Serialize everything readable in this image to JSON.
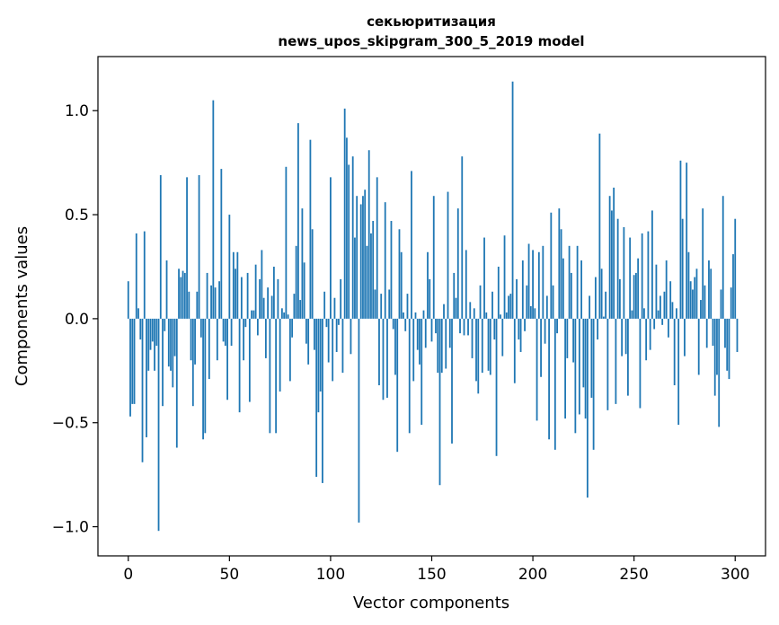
{
  "chart_data": {
    "type": "bar",
    "title_lines": [
      "секьюритизация",
      "news_upos_skipgram_300_5_2019 model"
    ],
    "xlabel": "Vector components",
    "ylabel": "Components values",
    "xlim": [
      -15,
      315
    ],
    "ylim": [
      -1.14,
      1.26
    ],
    "xticks": [
      0,
      50,
      100,
      150,
      200,
      250,
      300
    ],
    "xtick_labels": [
      "0",
      "50",
      "100",
      "150",
      "200",
      "250",
      "300"
    ],
    "yticks": [
      -1.0,
      -0.5,
      0.0,
      0.5,
      1.0
    ],
    "ytick_labels": [
      "−1.0",
      "−0.5",
      "0.0",
      "0.5",
      "1.0"
    ],
    "bar_color": "#1f77b4",
    "grid": false,
    "legend": "none",
    "values": [
      0.18,
      -0.47,
      -0.41,
      -0.41,
      0.41,
      0.05,
      -0.1,
      -0.69,
      0.42,
      -0.57,
      -0.25,
      -0.15,
      -0.11,
      -0.25,
      -0.13,
      -1.02,
      0.69,
      -0.42,
      -0.06,
      0.28,
      -0.23,
      -0.25,
      -0.33,
      -0.18,
      -0.62,
      0.24,
      0.2,
      0.23,
      0.22,
      0.68,
      0.13,
      -0.2,
      -0.42,
      -0.22,
      0.13,
      0.69,
      -0.09,
      -0.58,
      -0.55,
      0.22,
      -0.29,
      0.16,
      1.05,
      0.15,
      -0.2,
      0.18,
      0.72,
      -0.11,
      -0.13,
      -0.39,
      0.5,
      -0.13,
      0.32,
      0.24,
      0.32,
      -0.45,
      0.2,
      -0.2,
      -0.04,
      0.22,
      -0.4,
      0.04,
      0.04,
      0.26,
      -0.08,
      0.19,
      0.33,
      0.1,
      -0.19,
      0.15,
      -0.55,
      0.11,
      0.25,
      -0.55,
      0.19,
      -0.35,
      0.05,
      0.03,
      0.73,
      0.02,
      -0.3,
      -0.09,
      0.12,
      0.35,
      0.94,
      0.09,
      0.53,
      0.27,
      -0.12,
      -0.22,
      0.86,
      0.43,
      -0.15,
      -0.76,
      -0.45,
      -0.35,
      -0.79,
      0.13,
      -0.04,
      -0.21,
      0.68,
      -0.3,
      0.1,
      -0.16,
      -0.03,
      0.19,
      -0.26,
      1.01,
      0.87,
      0.74,
      -0.17,
      0.78,
      0.39,
      0.59,
      -0.98,
      0.55,
      0.59,
      0.62,
      0.35,
      0.81,
      0.41,
      0.47,
      0.14,
      0.68,
      -0.32,
      0.12,
      -0.39,
      0.56,
      -0.38,
      0.14,
      0.47,
      -0.05,
      -0.27,
      -0.64,
      0.43,
      0.32,
      0.03,
      -0.06,
      0.12,
      -0.55,
      0.71,
      -0.3,
      0.03,
      -0.15,
      -0.22,
      -0.51,
      0.04,
      -0.14,
      0.32,
      0.19,
      -0.11,
      0.59,
      -0.07,
      -0.26,
      -0.8,
      -0.26,
      0.07,
      -0.24,
      0.61,
      -0.14,
      -0.6,
      0.22,
      0.1,
      0.53,
      -0.07,
      0.78,
      -0.08,
      0.33,
      -0.08,
      0.08,
      -0.19,
      0.05,
      -0.3,
      -0.36,
      0.16,
      -0.26,
      0.39,
      0.03,
      -0.25,
      -0.27,
      0.13,
      -0.1,
      -0.66,
      0.25,
      0.02,
      -0.18,
      0.4,
      0.03,
      0.11,
      0.12,
      1.14,
      -0.31,
      0.19,
      -0.1,
      -0.16,
      0.28,
      -0.06,
      0.16,
      0.36,
      0.06,
      0.33,
      0.05,
      -0.49,
      0.32,
      -0.28,
      0.35,
      -0.12,
      0.11,
      -0.58,
      0.51,
      0.16,
      -0.63,
      -0.07,
      0.53,
      0.43,
      0.29,
      -0.48,
      -0.19,
      0.35,
      0.22,
      -0.21,
      -0.55,
      0.35,
      -0.46,
      0.28,
      -0.33,
      -0.48,
      -0.86,
      0.11,
      -0.38,
      -0.63,
      0.2,
      -0.1,
      0.89,
      0.24,
      0.01,
      0.13,
      -0.44,
      0.59,
      0.52,
      0.63,
      -0.41,
      0.48,
      0.19,
      -0.18,
      0.44,
      -0.17,
      -0.37,
      0.39,
      0.04,
      0.21,
      0.22,
      0.29,
      -0.43,
      0.41,
      0.05,
      -0.2,
      0.42,
      -0.15,
      0.52,
      -0.05,
      0.26,
      0.04,
      0.11,
      -0.03,
      0.13,
      0.28,
      -0.09,
      0.18,
      0.08,
      -0.32,
      0.05,
      -0.51,
      0.76,
      0.48,
      -0.18,
      0.75,
      0.32,
      0.18,
      0.14,
      0.2,
      0.24,
      -0.27,
      0.09,
      0.53,
      0.16,
      -0.14,
      0.28,
      0.24,
      -0.13,
      -0.37,
      -0.27,
      -0.52,
      0.14,
      0.59,
      -0.14,
      -0.25,
      -0.29,
      0.15,
      0.31,
      0.48,
      -0.16
    ]
  }
}
